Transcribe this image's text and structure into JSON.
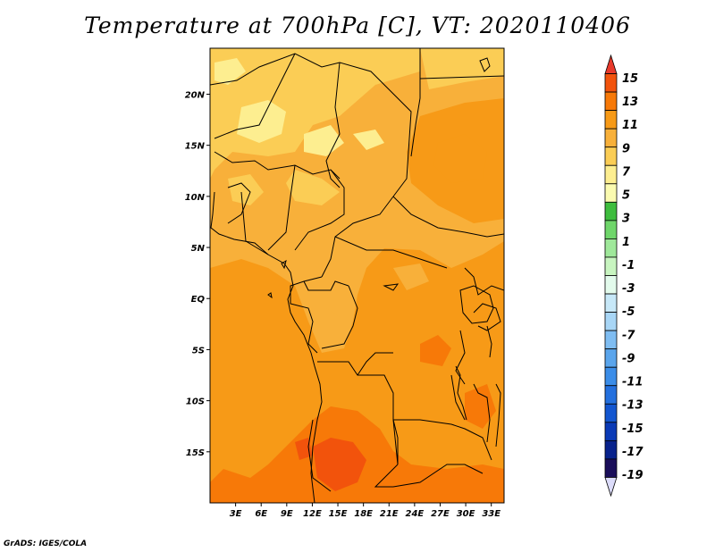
{
  "title": "Temperature at 700hPa [C], VT: 2020110406",
  "credit": "GrADS: IGES/COLA",
  "map": {
    "lon_range": [
      0,
      34.5
    ],
    "lat_range": [
      -20,
      24.5
    ],
    "x_ticks": [
      "3E",
      "6E",
      "9E",
      "12E",
      "15E",
      "18E",
      "21E",
      "24E",
      "27E",
      "30E",
      "33E"
    ],
    "x_tick_values": [
      3,
      6,
      9,
      12,
      15,
      18,
      21,
      24,
      27,
      30,
      33
    ],
    "y_ticks": [
      "20N",
      "15N",
      "10N",
      "5N",
      "EQ",
      "5S",
      "10S",
      "15S"
    ],
    "y_tick_values": [
      20,
      15,
      10,
      5,
      0,
      -5,
      -10,
      -15
    ]
  },
  "colorbar": {
    "labels": [
      "15",
      "13",
      "11",
      "9",
      "7",
      "5",
      "3",
      "1",
      "-1",
      "-3",
      "-5",
      "-7",
      "-9",
      "-11",
      "-13",
      "-15",
      "-17",
      "-19"
    ],
    "colors": [
      "#e8392b",
      "#f2530c",
      "#f77908",
      "#f79a17",
      "#f8b03a",
      "#fbcd55",
      "#fdee90",
      "#fbfbb0",
      "#3ebd3e",
      "#6fd66a",
      "#9fe89a",
      "#c8f5c0",
      "#e3fbec",
      "#c7e8f8",
      "#a8d6f6",
      "#7fbdf2",
      "#5aa5ec",
      "#3b8de8",
      "#2470de",
      "#1356d0",
      "#0a3ab6",
      "#08228c",
      "#1a0e5a",
      "#dcdcfa"
    ]
  },
  "legend": {
    "bands_description": ""
  }
}
